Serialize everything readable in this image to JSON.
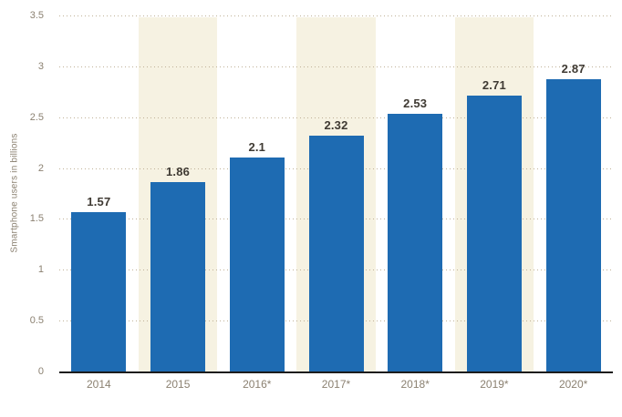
{
  "chart_data": {
    "type": "bar",
    "title": "",
    "xlabel": "",
    "ylabel": "Smartphone users in billions",
    "categories": [
      "2014",
      "2015",
      "2016*",
      "2017*",
      "2018*",
      "2019*",
      "2020*"
    ],
    "values": [
      1.57,
      1.86,
      2.1,
      2.32,
      2.53,
      2.71,
      2.87
    ],
    "value_labels": [
      "1.57",
      "1.86",
      "2.1",
      "2.32",
      "2.53",
      "2.71",
      "2.87"
    ],
    "ylim": [
      0,
      3.5
    ],
    "ytick_step": 0.5,
    "ytick_labels": [
      "0",
      "0.5",
      "1",
      "1.5",
      "2",
      "2.5",
      "3",
      "3.5"
    ],
    "grid": "horizontal-dotted",
    "legend": "none",
    "banded_columns": [
      1,
      3,
      5
    ],
    "colors": {
      "bar": "#1e6bb2",
      "column_band": "#f6f2e2",
      "gridline": "#bfb197",
      "axis_line": "#1c1c1c",
      "tick_label": "#8b8171",
      "value_label": "#3f3a33",
      "background": "#ffffff"
    }
  }
}
